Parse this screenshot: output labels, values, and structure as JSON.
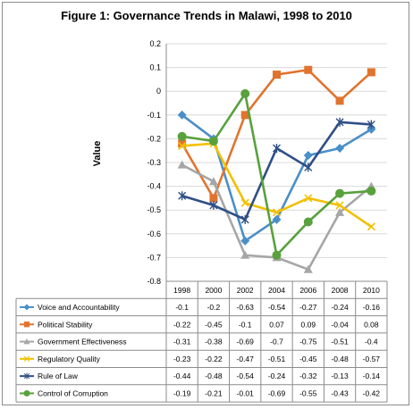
{
  "chart_data": {
    "type": "line",
    "title": "Figure 1: Governance Trends in Malawi, 1998 to 2010",
    "ylabel": "Value",
    "xlabel": "",
    "ylim": [
      -0.8,
      0.2
    ],
    "yticks": [
      "0.2",
      "0.1",
      "0",
      "-0.1",
      "-0.2",
      "-0.3",
      "-0.4",
      "-0.5",
      "-0.6",
      "-0.7",
      "-0.8"
    ],
    "categories": [
      "1998",
      "2000",
      "2002",
      "2004",
      "2006",
      "2008",
      "2010"
    ],
    "grid": "horizontal",
    "legend": "data-table-below",
    "series": [
      {
        "name": "Voice and Accountability",
        "color": "#4a8fc8",
        "marker": "diamond",
        "values": [
          -0.1,
          -0.2,
          -0.63,
          -0.54,
          -0.27,
          -0.24,
          -0.16
        ],
        "labels": [
          "-0.1",
          "-0.2",
          "-0.63",
          "-0.54",
          "-0.27",
          "-0.24",
          "-0.16"
        ]
      },
      {
        "name": "Political Stability",
        "color": "#e0742e",
        "marker": "square",
        "values": [
          -0.22,
          -0.45,
          -0.1,
          0.07,
          0.09,
          -0.04,
          0.08
        ],
        "labels": [
          "-0.22",
          "-0.45",
          "-0.1",
          "0.07",
          "0.09",
          "-0.04",
          "0.08"
        ]
      },
      {
        "name": "Government Effectiveness",
        "color": "#a6a6a6",
        "marker": "triangle",
        "values": [
          -0.31,
          -0.38,
          -0.69,
          -0.7,
          -0.75,
          -0.51,
          -0.4
        ],
        "labels": [
          "-0.31",
          "-0.38",
          "-0.69",
          "-0.7",
          "-0.75",
          "-0.51",
          "-0.4"
        ]
      },
      {
        "name": "Regulatory Quality",
        "color": "#f2c000",
        "marker": "x",
        "values": [
          -0.23,
          -0.22,
          -0.47,
          -0.51,
          -0.45,
          -0.48,
          -0.57
        ],
        "labels": [
          "-0.23",
          "-0.22",
          "-0.47",
          "-0.51",
          "-0.45",
          "-0.48",
          "-0.57"
        ]
      },
      {
        "name": "Rule of Law",
        "color": "#2f4f86",
        "marker": "star",
        "values": [
          -0.44,
          -0.48,
          -0.54,
          -0.24,
          -0.32,
          -0.13,
          -0.14
        ],
        "labels": [
          "-0.44",
          "-0.48",
          "-0.54",
          "-0.24",
          "-0.32",
          "-0.13",
          "-0.14"
        ]
      },
      {
        "name": "Control of Corruption",
        "color": "#58a13c",
        "marker": "circle",
        "values": [
          -0.19,
          -0.21,
          -0.01,
          -0.69,
          -0.55,
          -0.43,
          -0.42
        ],
        "labels": [
          "-0.19",
          "-0.21",
          "-0.01",
          "-0.69",
          "-0.55",
          "-0.43",
          "-0.42"
        ]
      }
    ]
  }
}
